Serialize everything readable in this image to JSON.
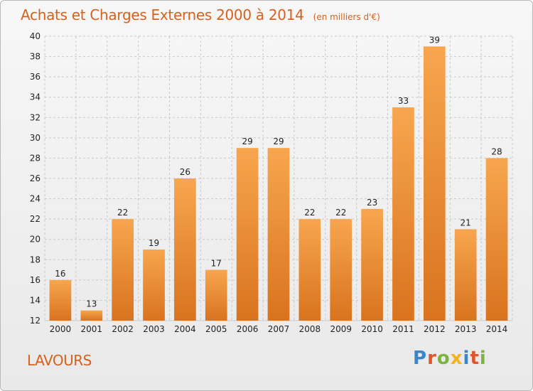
{
  "header": {
    "title": "Achats et Charges Externes 2000 à 2014",
    "subtitle": "(en milliers d'€)"
  },
  "footer": {
    "town": "LAVOURS",
    "logo_text": "Proxiti",
    "logo_colors": [
      "#3a86c8",
      "#e0552b",
      "#7cb342",
      "#f2b41c",
      "#3a86c8",
      "#e0552b",
      "#7cb342"
    ]
  },
  "colors": {
    "title": "#d4621e",
    "bar_top": "#f7a64f",
    "bar_bottom": "#d9731e",
    "grid": "#c8c8c8",
    "axis_text": "#222222"
  },
  "chart_data": {
    "type": "bar",
    "title": "Achats et Charges Externes 2000 à 2014",
    "subtitle": "(en milliers d'€)",
    "categories": [
      "2000",
      "2001",
      "2002",
      "2003",
      "2004",
      "2005",
      "2006",
      "2007",
      "2008",
      "2009",
      "2010",
      "2011",
      "2012",
      "2013",
      "2014"
    ],
    "values": [
      16,
      13,
      22,
      19,
      26,
      17,
      29,
      29,
      22,
      22,
      23,
      33,
      39,
      21,
      28
    ],
    "ylim": [
      12,
      40
    ],
    "yticks": [
      12,
      14,
      16,
      18,
      20,
      22,
      24,
      26,
      28,
      30,
      32,
      34,
      36,
      38,
      40
    ],
    "grid": true,
    "data_labels": true
  }
}
